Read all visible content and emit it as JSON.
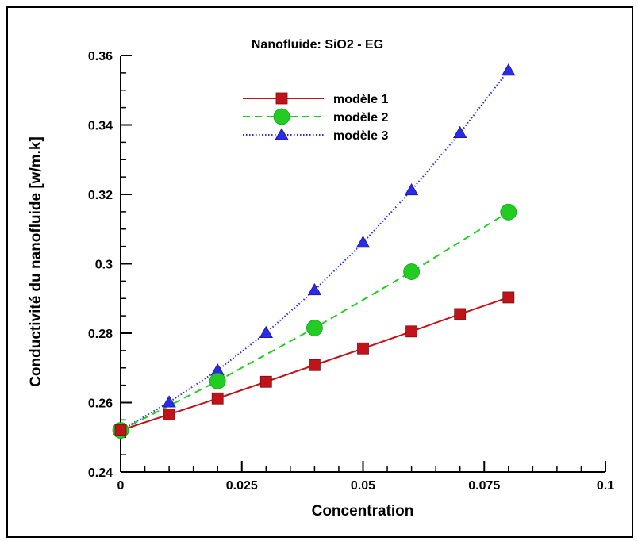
{
  "chart_data": {
    "type": "line",
    "title": "Nanofluide: SiO2 - EG",
    "xlabel": "Concentration",
    "ylabel": "Conductivité du nanofluide [w/m.k]",
    "xlim": [
      0,
      0.1
    ],
    "ylim": [
      0.24,
      0.36
    ],
    "xticks": [
      0,
      0.025,
      0.05,
      0.075,
      0.1
    ],
    "xtick_labels": [
      "0",
      "0.025",
      "0.05",
      "0.075",
      "0.1"
    ],
    "yticks": [
      0.24,
      0.26,
      0.28,
      0.3,
      0.32,
      0.34,
      0.36
    ],
    "ytick_labels": [
      "0.24",
      "0.26",
      "0.28",
      "0.3",
      "0.32",
      "0.34",
      "0.36"
    ],
    "grid": false,
    "legend_position": "top-center",
    "series": [
      {
        "name": "modèle 1",
        "color": "#c0141a",
        "line_style": "solid",
        "marker": "square",
        "x": [
          0,
          0.01,
          0.02,
          0.03,
          0.04,
          0.05,
          0.06,
          0.07,
          0.08
        ],
        "y": [
          0.252,
          0.2566,
          0.2612,
          0.266,
          0.2708,
          0.2756,
          0.2805,
          0.2855,
          0.2903
        ]
      },
      {
        "name": "modèle 2",
        "color": "#22cc22",
        "line_style": "dashed",
        "marker": "circle",
        "x": [
          0,
          0.02,
          0.04,
          0.06,
          0.08
        ],
        "y": [
          0.252,
          0.2662,
          0.2815,
          0.2977,
          0.3149
        ]
      },
      {
        "name": "modèle 3",
        "color": "#2a2ae8",
        "line_style": "dotted",
        "marker": "triangle",
        "x": [
          0,
          0.01,
          0.02,
          0.03,
          0.04,
          0.05,
          0.06,
          0.07,
          0.08
        ],
        "y": [
          0.252,
          0.2601,
          0.2693,
          0.2801,
          0.2924,
          0.3061,
          0.3212,
          0.3377,
          0.3557
        ]
      }
    ]
  }
}
